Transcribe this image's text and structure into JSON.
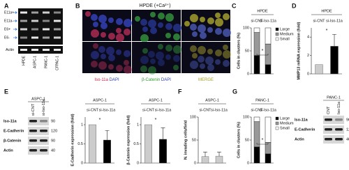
{
  "panel_labels": [
    "A",
    "B",
    "C",
    "D",
    "E",
    "F",
    "G"
  ],
  "blot_A": {
    "rows": [
      "E11a+",
      "E11a-",
      "E6+",
      "E6-"
    ],
    "loading": "Actin",
    "lanes": [
      "HPDE",
      "ASPC-1",
      "PANC-1",
      "CFPAC-1"
    ]
  },
  "micrograph_B": {
    "title": "HPDE (+Ca²⁺)",
    "rows": [
      "si-CNT",
      "si-Iso-11a"
    ],
    "columns": [
      {
        "stain": "Iso-11a",
        "counter": "DAPI"
      },
      {
        "stain": "β-Catenin",
        "counter": "DAPI"
      },
      {
        "stain": "MERGE"
      }
    ]
  },
  "blot_E": {
    "title": "ASPC-1",
    "lanes": [
      "si-CNT",
      "si-Iso-11a"
    ],
    "rows": [
      "Iso-11a",
      "E-Cadherin",
      "β-Catenin",
      "Actin"
    ],
    "mw": [
      90,
      120,
      90,
      40
    ]
  },
  "blot_G": {
    "title": "PANC-1",
    "lanes": [
      "CNT",
      "Iso-11a"
    ],
    "rows": [
      "Iso-11a",
      "E-Cadherin",
      "Actin"
    ],
    "mw": [
      90,
      120,
      40
    ]
  },
  "chart_data": [
    {
      "type": "bar",
      "stacked": true,
      "title": "HPDE",
      "ylabel": "Cells in clusters (%)",
      "categories": [
        "si-CNT",
        "si-Iso-11a"
      ],
      "series": [
        {
          "name": "Large",
          "color": "#000000",
          "values": [
            40,
            20
          ]
        },
        {
          "name": "Medium",
          "color": "#999999",
          "values": [
            50,
            45
          ]
        },
        {
          "name": "Small",
          "color": "#ffffff",
          "values": [
            10,
            35
          ]
        }
      ],
      "ylim": [
        0,
        100
      ],
      "yticks": [
        0,
        50,
        100
      ],
      "annotation": "*"
    },
    {
      "type": "bar",
      "title": "HPDE",
      "ylabel": "MMP13 mRNA expression (fold)",
      "categories": [
        "si-CNT",
        "si-Iso-11a"
      ],
      "values": [
        1,
        3
      ],
      "errors": [
        null,
        1.3
      ],
      "colors": [
        "#cccccc",
        "#000000"
      ],
      "ylim": [
        0,
        5
      ],
      "yticks": [
        0,
        2,
        4
      ],
      "annotation": "*"
    },
    {
      "type": "bar",
      "title": "ASPC-1",
      "ylabel": "E-Cadherin expression (fold)",
      "categories": [
        "si-CNT",
        "si-Iso-11a"
      ],
      "values": [
        1,
        0.6
      ],
      "errors": [
        null,
        0.25
      ],
      "colors": [
        "#cccccc",
        "#000000"
      ],
      "ylim": [
        0,
        1.2
      ],
      "yticks": [
        0,
        0.5,
        1
      ],
      "annotation": "*"
    },
    {
      "type": "bar",
      "title": "ASPC-1",
      "ylabel": "β-Catenin expression (fold)",
      "categories": [
        "si-CNT",
        "si-Iso-11a"
      ],
      "values": [
        1,
        0.62
      ],
      "errors": [
        null,
        0.3
      ],
      "colors": [
        "#cccccc",
        "#000000"
      ],
      "ylim": [
        0,
        1.2
      ],
      "yticks": [
        0,
        0.5,
        1
      ],
      "annotation": "*"
    },
    {
      "type": "bar",
      "title": "ASPC-1",
      "ylabel": "N. invading cells/field",
      "categories": [
        "si-CNT",
        "si-Iso-11a"
      ],
      "values": [
        14,
        15
      ],
      "errors": [
        10,
        9
      ],
      "colors": [
        "#cccccc",
        "#cccccc"
      ],
      "ylim": [
        0,
        100
      ],
      "yticks": [
        0,
        50,
        100
      ]
    },
    {
      "type": "bar",
      "stacked": true,
      "title": "PANC-1",
      "ylabel": "Cells in clusters (%)",
      "categories": [
        "si-CNT",
        "si-Iso-11a"
      ],
      "series": [
        {
          "name": "Large",
          "color": "#000000",
          "values": [
            35,
            20
          ]
        },
        {
          "name": "Medium",
          "color": "#999999",
          "values": [
            55,
            25
          ]
        },
        {
          "name": "Small",
          "color": "#ffffff",
          "values": [
            10,
            55
          ]
        }
      ],
      "ylim": [
        0,
        100
      ],
      "yticks": [
        0,
        50,
        100
      ],
      "annotation": "*"
    }
  ]
}
